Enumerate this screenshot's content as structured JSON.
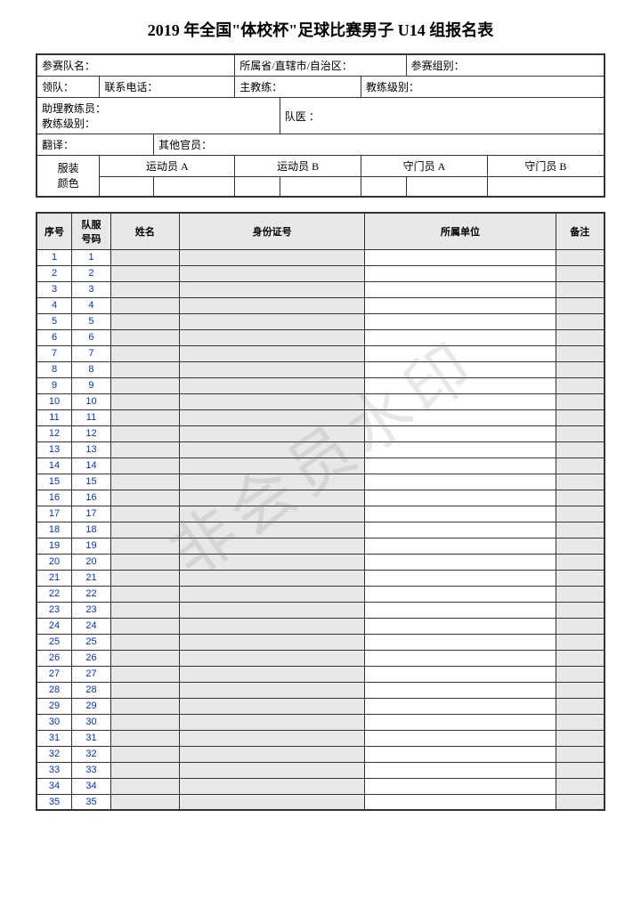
{
  "title": "2019 年全国\"体校杯\"足球比赛男子 U14 组报名表",
  "watermark": "非会员水印",
  "info": {
    "team_name_label": "参赛队名：",
    "province_label": "所属省/直辖市/自治区：",
    "group_label": "参赛组别：",
    "leader_label": "领队：",
    "phone_label": "联系电话：",
    "head_coach_label": "主教练：",
    "coach_level_label": "教练级别：",
    "assistant_coach_label": "助理教练员：",
    "coach_level2_label": "教练级别：",
    "doctor_label": "队医 ：",
    "translator_label": "翻译：",
    "other_official_label": "其他官员："
  },
  "uniform": {
    "row_label": "服装\n颜色",
    "col_a": "运动员 A",
    "col_b": "运动员 B",
    "col_gk_a": "守门员 A",
    "col_gk_b": "守门员 B"
  },
  "roster_headers": {
    "seq": "序号",
    "jersey": "队服\n号码",
    "name": "姓名",
    "id": "身份证号",
    "unit": "所属单位",
    "note": "备注"
  },
  "roster_rows": [
    {
      "seq": "1",
      "num": "1"
    },
    {
      "seq": "2",
      "num": "2"
    },
    {
      "seq": "3",
      "num": "3"
    },
    {
      "seq": "4",
      "num": "4"
    },
    {
      "seq": "5",
      "num": "5"
    },
    {
      "seq": "6",
      "num": "6"
    },
    {
      "seq": "7",
      "num": "7"
    },
    {
      "seq": "8",
      "num": "8"
    },
    {
      "seq": "9",
      "num": "9"
    },
    {
      "seq": "10",
      "num": "10"
    },
    {
      "seq": "11",
      "num": "11"
    },
    {
      "seq": "12",
      "num": "12"
    },
    {
      "seq": "13",
      "num": "13"
    },
    {
      "seq": "14",
      "num": "14"
    },
    {
      "seq": "15",
      "num": "15"
    },
    {
      "seq": "16",
      "num": "16"
    },
    {
      "seq": "17",
      "num": "17"
    },
    {
      "seq": "18",
      "num": "18"
    },
    {
      "seq": "19",
      "num": "19"
    },
    {
      "seq": "20",
      "num": "20"
    },
    {
      "seq": "21",
      "num": "21"
    },
    {
      "seq": "22",
      "num": "22"
    },
    {
      "seq": "23",
      "num": "23"
    },
    {
      "seq": "24",
      "num": "24"
    },
    {
      "seq": "25",
      "num": "25"
    },
    {
      "seq": "26",
      "num": "26"
    },
    {
      "seq": "27",
      "num": "27"
    },
    {
      "seq": "28",
      "num": "28"
    },
    {
      "seq": "29",
      "num": "29"
    },
    {
      "seq": "30",
      "num": "30"
    },
    {
      "seq": "31",
      "num": "31"
    },
    {
      "seq": "32",
      "num": "32"
    },
    {
      "seq": "33",
      "num": "33"
    },
    {
      "seq": "34",
      "num": "34"
    },
    {
      "seq": "35",
      "num": "35"
    }
  ],
  "colors": {
    "border": "#333333",
    "header_bg": "#e8e8e8",
    "text_number": "#0033cc",
    "watermark": "rgba(128,128,128,0.18)"
  }
}
